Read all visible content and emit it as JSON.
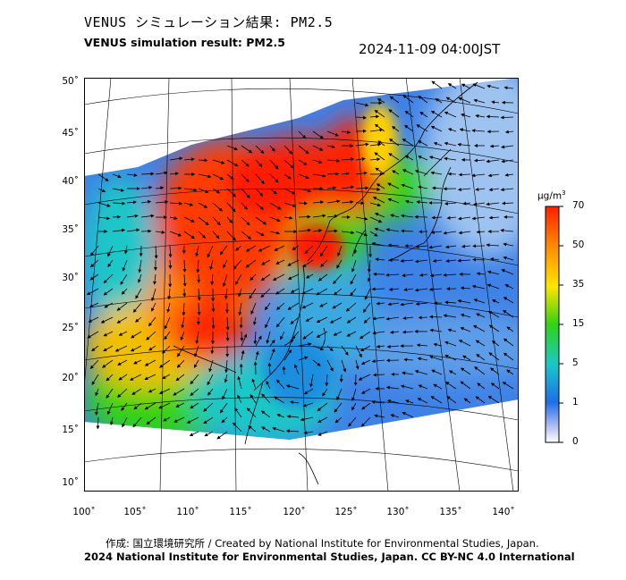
{
  "header": {
    "title_jp": "VENUS シミュレーション結果: PM2.5",
    "title_en": "VENUS simulation result: PM2.5",
    "timestamp": "2024-11-09 04:00JST"
  },
  "map": {
    "lat_labels": [
      "50˚",
      "45˚",
      "40˚",
      "35˚",
      "30˚",
      "25˚",
      "20˚",
      "15˚",
      "10˚"
    ],
    "lon_labels": [
      "100˚",
      "105˚",
      "110˚",
      "115˚",
      "120˚",
      "125˚",
      "130˚",
      "135˚",
      "140˚"
    ],
    "lat_values": [
      50,
      45,
      40,
      35,
      30,
      25,
      20,
      15,
      10
    ],
    "lon_values": [
      100,
      105,
      110,
      115,
      120,
      125,
      130,
      135,
      140
    ]
  },
  "colorbar": {
    "unit_base": "μg/m",
    "unit_sup": "3",
    "ticks": [
      "70",
      "50",
      "35",
      "15",
      "5",
      "1",
      "0"
    ],
    "tick_values": [
      70,
      50,
      35,
      15,
      5,
      1,
      0
    ],
    "colors": [
      "#ff1e00",
      "#ff8c00",
      "#ffe600",
      "#32d214",
      "#19c8c8",
      "#1e6ee6",
      "#ffffff"
    ]
  },
  "footer": {
    "line1": "作成: 国立環境研究所 / Created by National Institute for Environmental Studies, Japan.",
    "line2": "2024 National Institute for Environmental Studies, Japan. CC BY-NC 4.0 International"
  }
}
